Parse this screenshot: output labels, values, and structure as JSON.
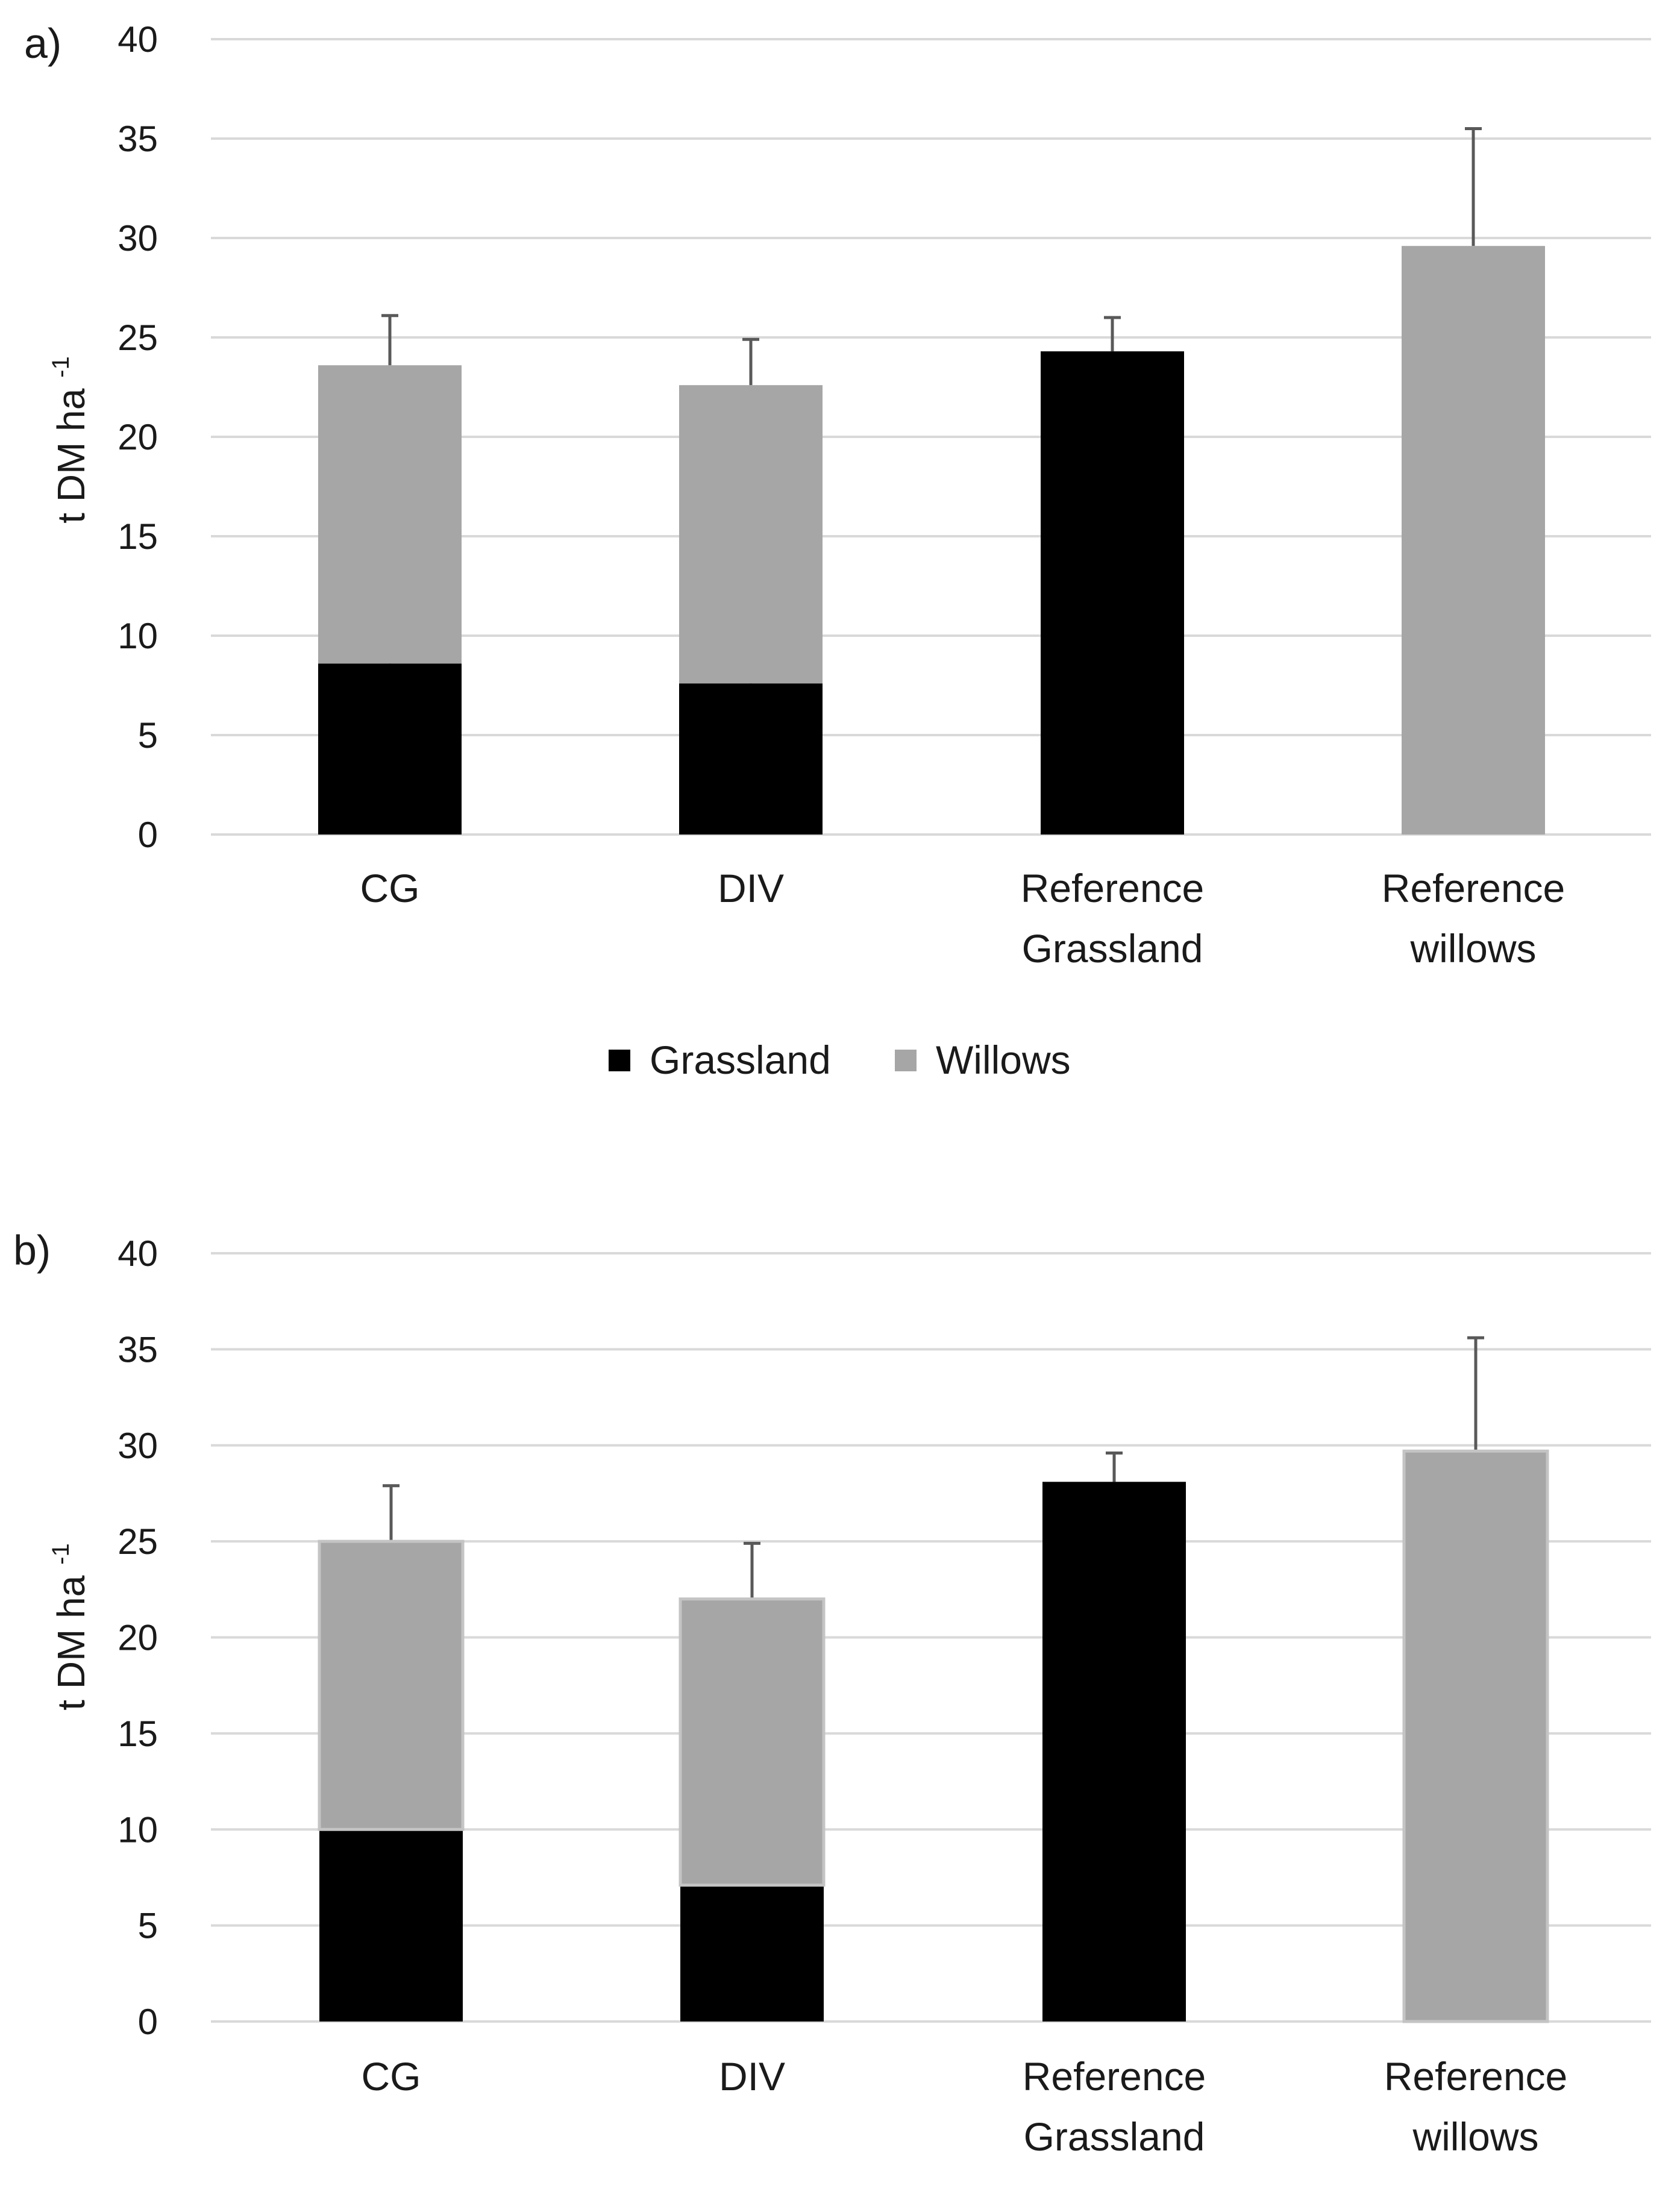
{
  "chart_data": [
    {
      "panel_label": "a)",
      "type": "bar",
      "stacked": true,
      "ylabel_main": "t DM ha",
      "ylabel_sup": "-1",
      "ylim": [
        0,
        40
      ],
      "y_ticks": [
        0,
        5,
        10,
        15,
        20,
        25,
        30,
        35,
        40
      ],
      "grid": true,
      "categories": [
        [
          "CG"
        ],
        [
          "DIV"
        ],
        [
          "Reference",
          "Grassland"
        ],
        [
          "Reference",
          "willows"
        ]
      ],
      "series": [
        {
          "name": "Grassland",
          "color": "#000000",
          "values": [
            8.6,
            7.6,
            24.3,
            0
          ],
          "errors": [
            2.5,
            2.3,
            1.7,
            0
          ]
        },
        {
          "name": "Willows",
          "color": "#a6a6a6",
          "values": [
            15.0,
            15.0,
            0,
            29.6
          ],
          "errors": [
            2.5,
            2.3,
            0,
            5.9
          ]
        }
      ],
      "legend": {
        "position": "bottom",
        "entries": [
          "Grassland",
          "Willows"
        ]
      }
    },
    {
      "panel_label": "b)",
      "type": "bar",
      "stacked": true,
      "ylabel_main": "t DM ha",
      "ylabel_sup": "-1",
      "ylim": [
        0,
        40
      ],
      "y_ticks": [
        0,
        5,
        10,
        15,
        20,
        25,
        30,
        35,
        40
      ],
      "grid": true,
      "categories": [
        [
          "CG"
        ],
        [
          "DIV"
        ],
        [
          "Reference",
          "Grassland"
        ],
        [
          "Reference",
          "willows"
        ]
      ],
      "series": [
        {
          "name": "Grassland",
          "color": "#000000",
          "values": [
            10.0,
            7.1,
            28.1,
            0
          ],
          "errors": [
            2.2,
            2.8,
            1.5,
            0
          ]
        },
        {
          "name": "Willows",
          "color": "#a6a6a6",
          "values": [
            15.0,
            14.9,
            0,
            29.7
          ],
          "errors": [
            2.9,
            2.9,
            0,
            5.9
          ]
        }
      ]
    }
  ]
}
